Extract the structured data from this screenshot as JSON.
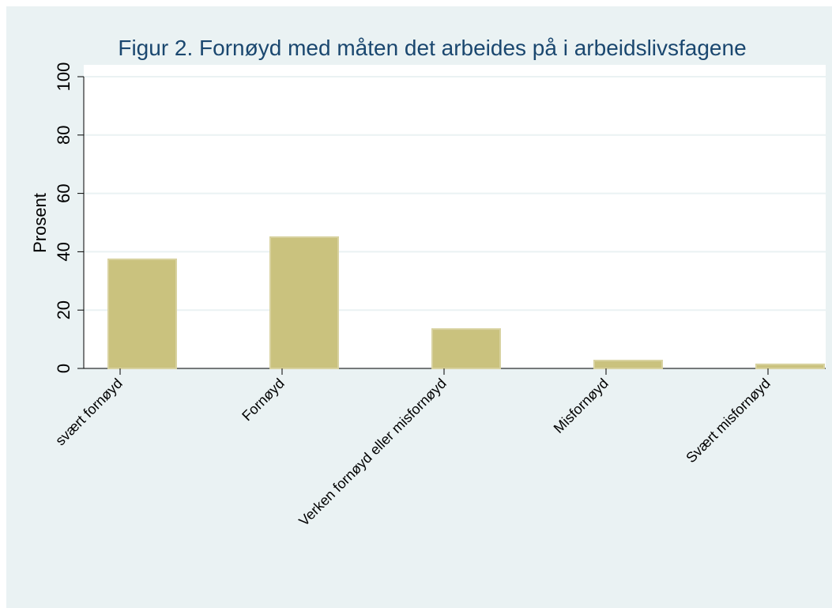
{
  "chart_data": {
    "type": "bar",
    "title": "Figur 2. Fornøyd med måten det arbeides på i arbeidslivsfagene",
    "y_label": "Prosent",
    "categories": [
      "svært fornøyd",
      "Fornøyd",
      "Verken fornøyd eller misfornøyd",
      "Misfornøyd",
      "Svært misfornøyd"
    ],
    "values": [
      37.4,
      45,
      13.5,
      2.7,
      1.4
    ],
    "color": "#cac27e",
    "ylim": [
      0,
      100
    ],
    "yticks": [
      0,
      20,
      40,
      60,
      80,
      100
    ],
    "grid": true
  }
}
